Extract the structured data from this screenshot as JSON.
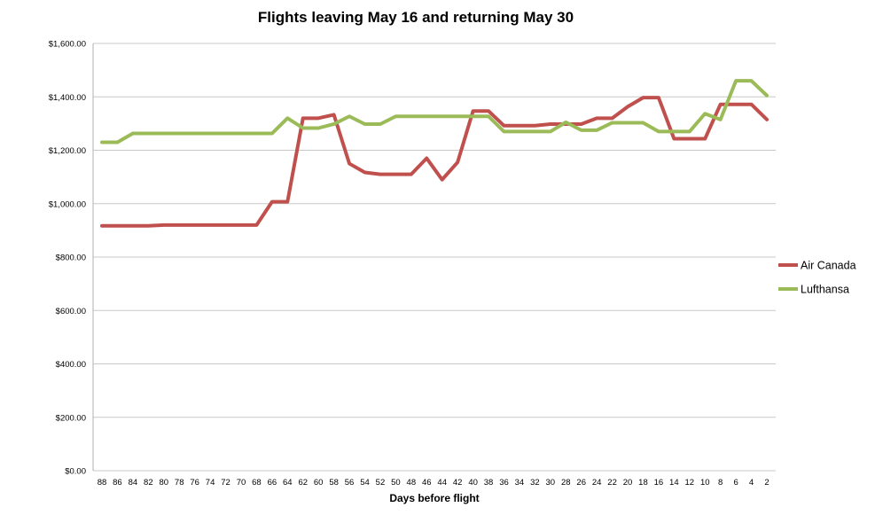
{
  "chart_data": {
    "type": "line",
    "title": "Flights leaving May 16 and returning May 30",
    "xlabel": "Days before flight",
    "ylabel": "",
    "ylim": [
      0,
      1600
    ],
    "y_ticks": [
      "$0.00",
      "$200.00",
      "$400.00",
      "$600.00",
      "$800.00",
      "$1,000.00",
      "$1,200.00",
      "$1,400.00",
      "$1,600.00"
    ],
    "categories": [
      "88",
      "86",
      "84",
      "82",
      "80",
      "78",
      "76",
      "74",
      "72",
      "70",
      "68",
      "66",
      "64",
      "62",
      "60",
      "58",
      "56",
      "54",
      "52",
      "50",
      "48",
      "46",
      "44",
      "42",
      "40",
      "38",
      "36",
      "34",
      "32",
      "30",
      "28",
      "26",
      "24",
      "22",
      "20",
      "18",
      "16",
      "14",
      "12",
      "10",
      "8",
      "6",
      "4",
      "2"
    ],
    "grid": "horizontal",
    "legend_position": "right",
    "series": [
      {
        "name": "Air Canada",
        "color": "#c0504d",
        "values": [
          917,
          917,
          917,
          917,
          920,
          920,
          920,
          920,
          920,
          920,
          920,
          1007,
          1007,
          1320,
          1320,
          1333,
          1150,
          1117,
          1110,
          1110,
          1110,
          1170,
          1090,
          1155,
          1347,
          1347,
          1292,
          1292,
          1292,
          1298,
          1298,
          1298,
          1320,
          1320,
          1363,
          1397,
          1397,
          1243,
          1243,
          1243,
          1372,
          1372,
          1372,
          1315
        ]
      },
      {
        "name": "Lufthansa",
        "color": "#9bbb59",
        "values": [
          1230,
          1230,
          1263,
          1263,
          1263,
          1263,
          1263,
          1263,
          1263,
          1263,
          1263,
          1263,
          1320,
          1283,
          1283,
          1298,
          1327,
          1298,
          1298,
          1327,
          1327,
          1327,
          1327,
          1327,
          1327,
          1327,
          1270,
          1270,
          1270,
          1270,
          1305,
          1275,
          1275,
          1303,
          1303,
          1303,
          1270,
          1270,
          1270,
          1337,
          1315,
          1460,
          1460,
          1405
        ]
      }
    ]
  }
}
